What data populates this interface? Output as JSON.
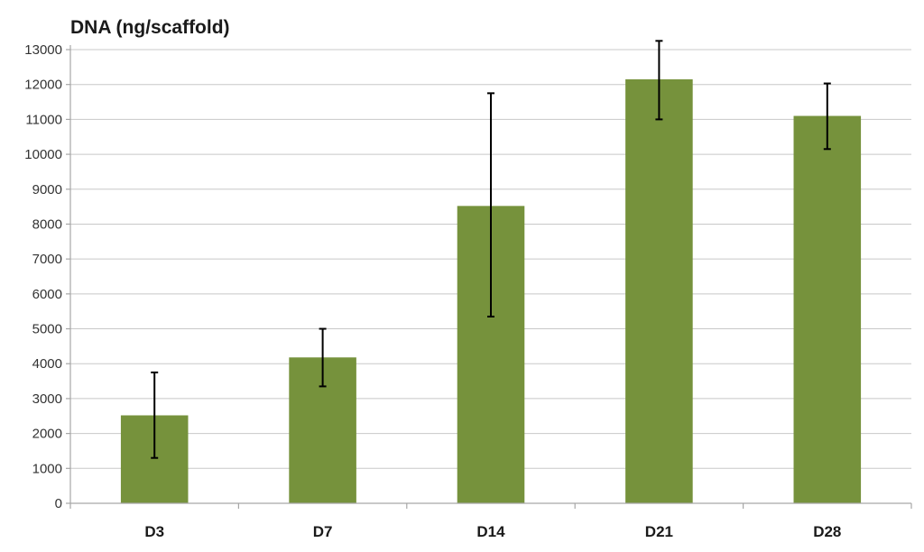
{
  "chart_data": {
    "type": "bar",
    "title": "DNA (ng/scaffold)",
    "xlabel": "",
    "ylabel": "",
    "categories": [
      "D3",
      "D7",
      "D14",
      "D21",
      "D28"
    ],
    "values": [
      2520,
      4180,
      8520,
      12150,
      11100
    ],
    "error_low": [
      1300,
      3350,
      5350,
      11000,
      10150
    ],
    "error_high": [
      3750,
      5000,
      11750,
      13250,
      12030
    ],
    "ylim": [
      0,
      13000
    ],
    "yticks": [
      0,
      1000,
      2000,
      3000,
      4000,
      5000,
      6000,
      7000,
      8000,
      9000,
      10000,
      11000,
      12000,
      13000
    ],
    "grid": true,
    "legend": "none",
    "bar_color": "#76923c",
    "error_bar_color": "#000000"
  }
}
